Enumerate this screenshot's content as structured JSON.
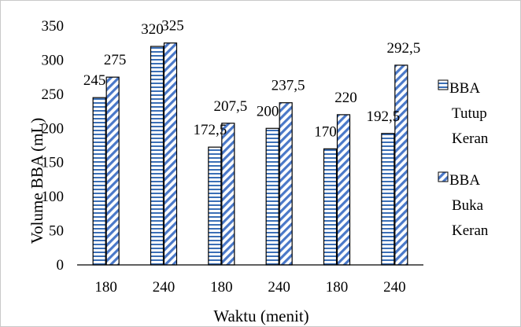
{
  "chart_data": {
    "type": "bar",
    "categories": [
      "180",
      "240",
      "180",
      "240",
      "180",
      "240"
    ],
    "series": [
      {
        "name": "BBA Tutup Keran",
        "legend_lines": [
          "BBA",
          "Tutup",
          "Keran"
        ],
        "values": [
          245,
          320,
          172.5,
          200,
          170,
          192.5
        ],
        "labels": [
          "245",
          "320",
          "172,5",
          "200",
          "170",
          "192,5"
        ],
        "pattern": "horizontal-stripes",
        "color": "#3b6fb6"
      },
      {
        "name": "BBA Buka Keran",
        "legend_lines": [
          "BBA",
          "Buka",
          "Keran"
        ],
        "values": [
          275,
          325,
          207.5,
          237.5,
          220,
          292.5
        ],
        "labels": [
          "275",
          "325",
          "207,5",
          "237,5",
          "220",
          "292,5"
        ],
        "pattern": "diagonal-stripes",
        "color": "#4a78c8"
      }
    ],
    "xlabel": "Waktu (menit)",
    "ylabel": "Volume BBA (mL)",
    "ylim": [
      0,
      350
    ],
    "yticks": [
      0,
      50,
      100,
      150,
      200,
      250,
      300,
      350
    ],
    "grid": false,
    "legend_position": "right"
  }
}
